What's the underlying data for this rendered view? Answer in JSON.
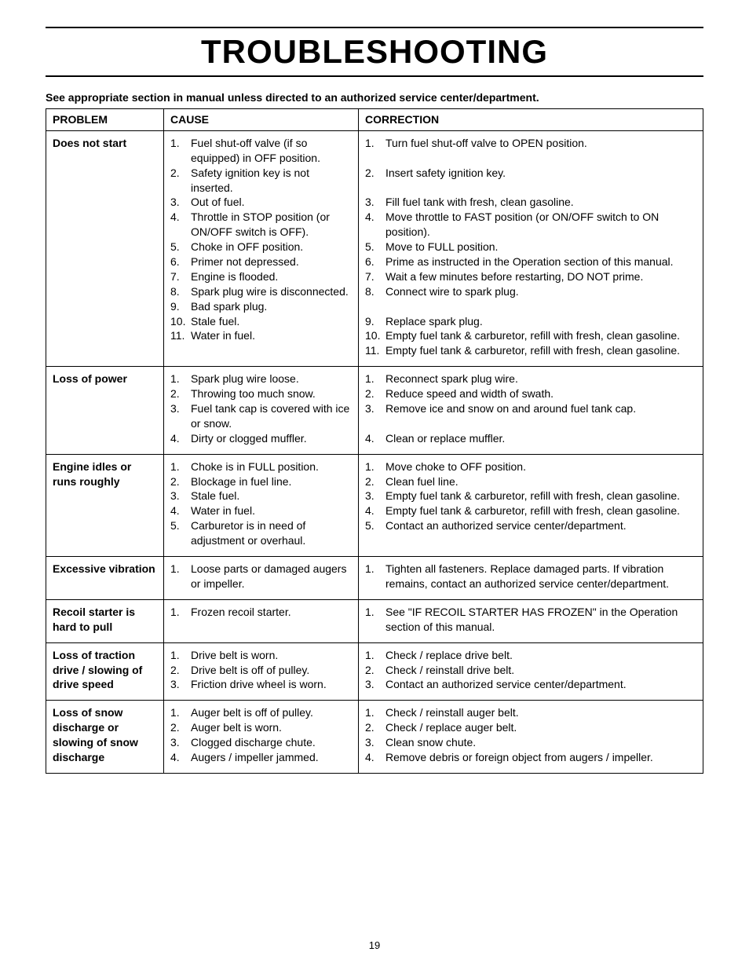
{
  "title": "TROUBLESHOOTING",
  "note": "See appropriate section in manual unless directed to an authorized service center/department.",
  "page_number": "19",
  "headers": {
    "problem": "PROBLEM",
    "cause": "CAUSE",
    "correction": "CORRECTION"
  },
  "rows": [
    {
      "problem": "Does not start",
      "causes": [
        "Fuel shut-off valve (if so equipped) in OFF position.",
        "Safety ignition key is not inserted.",
        "Out of fuel.",
        "Throttle in STOP position (or ON/OFF switch is OFF).",
        "Choke in OFF position.",
        "Primer not depressed.",
        "Engine is flooded.",
        "Spark plug wire is disconnected.",
        "Bad spark plug.",
        "Stale fuel.",
        "Water in fuel."
      ],
      "corrections": [
        "Turn fuel shut-off valve to OPEN position.",
        "Insert safety ignition key.",
        "Fill fuel tank with fresh, clean gasoline.",
        "Move throttle to FAST position (or ON/OFF switch to ON position).",
        "Move to FULL position.",
        "Prime as instructed in the Operation section of this manual.",
        "Wait a few minutes before restarting, DO NOT prime.",
        "Connect wire to spark plug.",
        "Replace spark plug.",
        "Empty fuel tank & carburetor, refill with fresh, clean gasoline.",
        "Empty fuel tank & carburetor, refill with fresh, clean gasoline."
      ],
      "corr_spacing_after": [
        0,
        0,
        -1,
        -1,
        -1,
        -1,
        -1,
        0,
        -1,
        -1,
        -1
      ]
    },
    {
      "problem": "Loss of power",
      "causes": [
        "Spark plug wire loose.",
        "Throwing too much snow.",
        "Fuel tank cap is covered with ice or snow.",
        "Dirty or clogged muffler."
      ],
      "corrections": [
        "Reconnect spark plug wire.",
        "Reduce speed and width of swath.",
        "Remove ice and snow on and around fuel tank cap.",
        "Clean or replace muffler."
      ],
      "corr_spacing_after": [
        -1,
        -1,
        0,
        -1
      ]
    },
    {
      "problem": "Engine idles or runs roughly",
      "causes": [
        "Choke is in FULL position.",
        "Blockage in fuel line.",
        "Stale fuel.",
        "Water in fuel.",
        "Carburetor is in need of adjustment or overhaul."
      ],
      "corrections": [
        "Move choke to OFF position.",
        "Clean fuel line.",
        "Empty fuel tank & carburetor, refill with fresh, clean gasoline.",
        "Empty fuel tank & carburetor, refill with fresh, clean gasoline.",
        "Contact an authorized service center/department."
      ]
    },
    {
      "problem": "Excessive vibration",
      "causes": [
        "Loose parts or damaged augers or impeller."
      ],
      "corrections": [
        "Tighten all fasteners.  Replace damaged parts.  If vibration remains, contact an authorized service center/department."
      ]
    },
    {
      "problem": "Recoil starter is hard to pull",
      "causes": [
        "Frozen recoil starter."
      ],
      "corrections": [
        "See \"IF RECOIL STARTER HAS FROZEN\" in the Operation section of this manual."
      ]
    },
    {
      "problem": "Loss of traction drive / slowing of drive speed",
      "causes": [
        "Drive belt is worn.",
        "Drive belt is off of pulley.",
        "Friction drive wheel is worn."
      ],
      "corrections": [
        "Check / replace drive belt.",
        "Check / reinstall drive belt.",
        "Contact an authorized service center/department."
      ]
    },
    {
      "problem": "Loss of snow discharge or slowing of snow discharge",
      "causes": [
        "Auger belt is off of pulley.",
        "Auger belt is worn.",
        "Clogged discharge chute.",
        "Augers / impeller jammed."
      ],
      "corrections": [
        "Check / reinstall auger belt.",
        "Check / replace auger belt.",
        "Clean snow chute.",
        "Remove debris or foreign object from augers / impeller."
      ]
    }
  ]
}
